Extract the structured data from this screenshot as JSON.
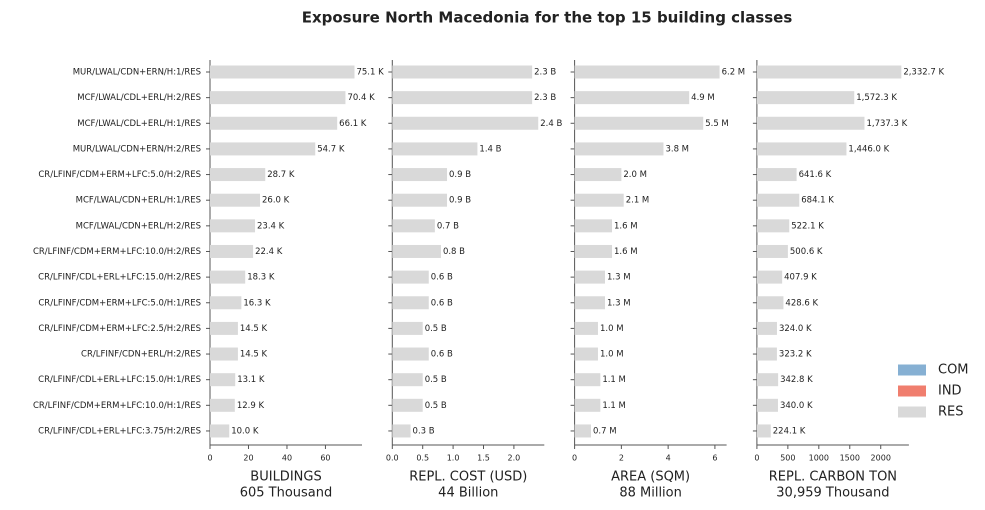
{
  "title": "Exposure North Macedonia for the top 15 building classes",
  "legend": {
    "position": "right",
    "entries": [
      {
        "name": "COM",
        "color": "#86b0d3"
      },
      {
        "name": "IND",
        "color": "#f07e6e"
      },
      {
        "name": "RES",
        "color": "#d9d9d9"
      }
    ]
  },
  "chart_data": [
    {
      "type": "barh",
      "xlabel": "BUILDINGS",
      "subtitle": "605 Thousand",
      "color": "#d9d9d9",
      "categories": [
        "MUR/LWAL/CDN+ERN/H:1/RES",
        "MCF/LWAL/CDL+ERL/H:2/RES",
        "MCF/LWAL/CDL+ERL/H:1/RES",
        "MUR/LWAL/CDN+ERN/H:2/RES",
        "CR/LFINF/CDM+ERM+LFC:5.0/H:2/RES",
        "MCF/LWAL/CDN+ERL/H:1/RES",
        "MCF/LWAL/CDN+ERL/H:2/RES",
        "CR/LFINF/CDM+ERM+LFC:10.0/H:2/RES",
        "CR/LFINF/CDL+ERL+LFC:15.0/H:2/RES",
        "CR/LFINF/CDM+ERM+LFC:5.0/H:1/RES",
        "CR/LFINF/CDM+ERM+LFC:2.5/H:2/RES",
        "CR/LFINF/CDN+ERL/H:2/RES",
        "CR/LFINF/CDL+ERL+LFC:15.0/H:1/RES",
        "CR/LFINF/CDM+ERM+LFC:10.0/H:1/RES",
        "CR/LFINF/CDL+ERL+LFC:3.75/H:2/RES"
      ],
      "values": [
        75.1,
        70.4,
        66.1,
        54.7,
        28.7,
        26.0,
        23.4,
        22.4,
        18.3,
        16.3,
        14.5,
        14.5,
        13.1,
        12.9,
        10.0
      ],
      "value_labels": [
        "75.1 K",
        "70.4 K",
        "66.1 K",
        "54.7 K",
        "28.7 K",
        "26.0 K",
        "23.4 K",
        "22.4 K",
        "18.3 K",
        "16.3 K",
        "14.5 K",
        "14.5 K",
        "13.1 K",
        "12.9 K",
        "10.0 K"
      ],
      "xlim": [
        0,
        79
      ],
      "xticks": [
        0,
        20,
        40,
        60
      ]
    },
    {
      "type": "barh",
      "xlabel": "REPL. COST (USD)",
      "subtitle": "44 Billion",
      "color": "#d9d9d9",
      "values": [
        2.3,
        2.3,
        2.4,
        1.4,
        0.9,
        0.9,
        0.7,
        0.8,
        0.6,
        0.6,
        0.5,
        0.6,
        0.5,
        0.5,
        0.3
      ],
      "value_labels": [
        "2.3 B",
        "2.3 B",
        "2.4 B",
        "1.4 B",
        "0.9 B",
        "0.9 B",
        "0.7 B",
        "0.8 B",
        "0.6 B",
        "0.6 B",
        "0.5 B",
        "0.6 B",
        "0.5 B",
        "0.5 B",
        "0.3 B"
      ],
      "xlim": [
        0,
        2.5
      ],
      "xticks": [
        {
          "value": 0,
          "label": "0.0"
        },
        0.5,
        {
          "value": 1,
          "label": "1.0"
        },
        1.5,
        {
          "value": 2,
          "label": "2.0"
        }
      ]
    },
    {
      "type": "barh",
      "xlabel": "AREA (SQM)",
      "subtitle": "88 Million",
      "color": "#d9d9d9",
      "values": [
        6.2,
        4.9,
        5.5,
        3.8,
        2.0,
        2.1,
        1.6,
        1.6,
        1.3,
        1.3,
        1.0,
        1.0,
        1.1,
        1.1,
        0.7
      ],
      "value_labels": [
        "6.2 M",
        "4.9 M",
        "5.5 M",
        "3.8 M",
        "2.0 M",
        "2.1 M",
        "1.6 M",
        "1.6 M",
        "1.3 M",
        "1.3 M",
        "1.0 M",
        "1.0 M",
        "1.1 M",
        "1.1 M",
        "0.7 M"
      ],
      "xlim": [
        0,
        6.5
      ],
      "xticks": [
        0,
        2,
        4,
        6
      ]
    },
    {
      "type": "barh",
      "xlabel": "REPL. CARBON TON",
      "subtitle": "30,959 Thousand",
      "color": "#d9d9d9",
      "values": [
        2332.7,
        1572.3,
        1737.3,
        1446.0,
        641.6,
        684.1,
        522.1,
        500.6,
        407.9,
        428.6,
        324.0,
        323.2,
        342.8,
        340.0,
        224.1
      ],
      "value_labels": [
        "2,332.7 K",
        "1,572.3 K",
        "1,737.3 K",
        "1,446.0 K",
        "641.6 K",
        "684.1 K",
        "522.1 K",
        "500.6 K",
        "407.9 K",
        "428.6 K",
        "324.0 K",
        "323.2 K",
        "342.8 K",
        "340.0 K",
        "224.1 K"
      ],
      "xlim": [
        0,
        2455
      ],
      "xticks": [
        0,
        500,
        1000,
        1500,
        2000
      ]
    }
  ]
}
